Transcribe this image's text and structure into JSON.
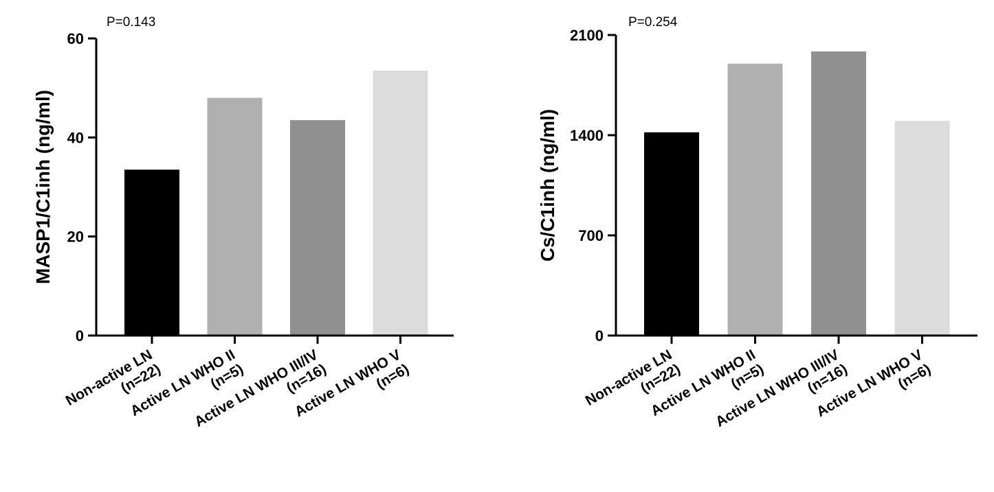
{
  "chart_data": [
    {
      "type": "bar",
      "categories": [
        [
          "Non-active LN",
          "(n=22)"
        ],
        [
          "Active LN WHO II",
          "(n=5)"
        ],
        [
          "Active LN WHO III/IV",
          "(n=16)"
        ],
        [
          "Active LN WHO V",
          "(n=6)"
        ]
      ],
      "values": [
        33.5,
        48,
        43.5,
        53.5
      ],
      "colors": [
        "#000000",
        "#b0b0b0",
        "#909090",
        "#dcdcdc"
      ],
      "ylabel": "MASP1/C1inh (ng/ml)",
      "ylim": [
        0,
        60
      ],
      "yticks": [
        0,
        20,
        40,
        60
      ],
      "annotation": "P=0.143",
      "grid": false
    },
    {
      "type": "bar",
      "categories": [
        [
          "Non-active LN",
          "(n=22)"
        ],
        [
          "Active LN WHO II",
          "(n=5)"
        ],
        [
          "Active LN WHO III/IV",
          "(n=16)"
        ],
        [
          "Active LN WHO V",
          "(n=6)"
        ]
      ],
      "values": [
        1420,
        1900,
        1985,
        1500
      ],
      "colors": [
        "#000000",
        "#b0b0b0",
        "#909090",
        "#dcdcdc"
      ],
      "ylabel": "Cs/C1inh (ng/ml)",
      "ylim": [
        0,
        2100
      ],
      "yticks": [
        0,
        700,
        1400,
        2100
      ],
      "annotation": "P=0.254",
      "grid": false
    }
  ]
}
